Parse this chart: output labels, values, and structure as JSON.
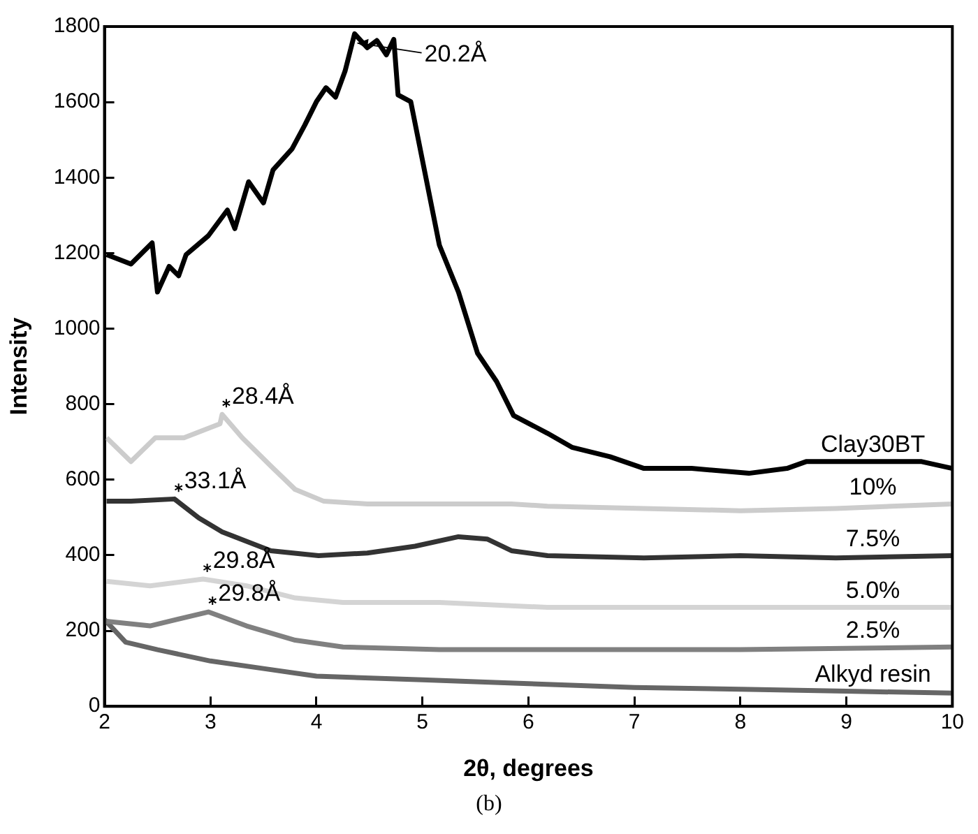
{
  "chart_data": {
    "type": "line",
    "xlabel": "2θ, degrees",
    "ylabel": "Intensity",
    "xlim": [
      2,
      10
    ],
    "xticks": [
      2,
      3,
      4,
      5,
      6,
      7,
      8,
      9,
      10
    ],
    "ylim": [
      0,
      1800
    ],
    "yticks": [
      0,
      200,
      400,
      600,
      800,
      1000,
      1200,
      1400,
      1600,
      1800
    ],
    "grid": false,
    "legend": false,
    "marker": "none",
    "line_style": "solid",
    "series": [
      {
        "name": "Clay30BT",
        "color": "#000000",
        "x": [
          2.02,
          2.25,
          2.45,
          2.5,
          2.61,
          2.7,
          2.77,
          2.98,
          3.16,
          3.23,
          3.36,
          3.5,
          3.59,
          3.77,
          3.89,
          4.0,
          4.09,
          4.18,
          4.27,
          4.36,
          4.48,
          4.57,
          4.66,
          4.73,
          4.77,
          4.89,
          5.16,
          5.34,
          5.52,
          5.7,
          5.86,
          6.18,
          6.41,
          6.77,
          7.09,
          7.54,
          8.08,
          8.44,
          8.62,
          9.12,
          9.71,
          10
        ],
        "values": [
          1196,
          1171,
          1227,
          1097,
          1165,
          1140,
          1196,
          1246,
          1314,
          1265,
          1389,
          1333,
          1420,
          1476,
          1539,
          1601,
          1638,
          1613,
          1682,
          1781,
          1744,
          1763,
          1725,
          1766,
          1619,
          1601,
          1221,
          1097,
          935,
          860,
          770,
          723,
          686,
          661,
          630,
          630,
          617,
          630,
          648,
          648,
          648,
          630
        ]
      },
      {
        "name": "10%",
        "color": "#cccccc",
        "x": [
          2.02,
          2.25,
          2.48,
          2.75,
          3.09,
          3.11,
          3.3,
          3.57,
          3.8,
          4.07,
          4.48,
          4.93,
          5.39,
          5.84,
          6.18,
          7.09,
          8.0,
          8.9,
          10
        ],
        "values": [
          711,
          648,
          711,
          711,
          748,
          773,
          711,
          636,
          574,
          543,
          536,
          536,
          536,
          536,
          530,
          524,
          518,
          524,
          536
        ]
      },
      {
        "name": "7.5%",
        "color": "#333333",
        "x": [
          2.02,
          2.25,
          2.66,
          2.89,
          3.11,
          3.34,
          3.57,
          4.02,
          4.48,
          4.93,
          5.34,
          5.61,
          5.84,
          6.18,
          7.09,
          8.0,
          8.9,
          10
        ],
        "values": [
          543,
          543,
          549,
          499,
          462,
          437,
          412,
          399,
          406,
          424,
          449,
          443,
          412,
          399,
          393,
          399,
          393,
          399
        ]
      },
      {
        "name": "5.0%",
        "color": "#d4d4d4",
        "x": [
          2.02,
          2.43,
          2.93,
          3.34,
          3.8,
          4.25,
          5.16,
          6.18,
          8.0,
          10
        ],
        "values": [
          331,
          319,
          337,
          319,
          287,
          275,
          275,
          262,
          262,
          262
        ]
      },
      {
        "name": "2.5%",
        "color": "#808080",
        "x": [
          2.02,
          2.43,
          2.98,
          3.34,
          3.8,
          4.25,
          5.16,
          6.18,
          8.0,
          10
        ],
        "values": [
          225,
          213,
          250,
          213,
          175,
          157,
          150,
          150,
          150,
          157
        ]
      },
      {
        "name": "Alkyd resin",
        "color": "#666666",
        "x": [
          2.0,
          2.2,
          2.5,
          3.0,
          3.5,
          4.0,
          5.0,
          6.0,
          7.0,
          8.0,
          9.0,
          10
        ],
        "values": [
          230,
          170,
          150,
          120,
          100,
          80,
          70,
          60,
          50,
          45,
          40,
          35
        ]
      }
    ],
    "annotations": [
      {
        "text": "20.2Å",
        "x": 4.36,
        "y": 1760
      },
      {
        "text": "28.4Å",
        "x": 3.11,
        "y": 773
      },
      {
        "text": "33.1Å",
        "x": 2.66,
        "y": 549
      },
      {
        "text": "29.8Å",
        "x": 2.93,
        "y": 337
      },
      {
        "text": "29.8Å",
        "x": 2.98,
        "y": 250
      },
      "(b)"
    ]
  }
}
